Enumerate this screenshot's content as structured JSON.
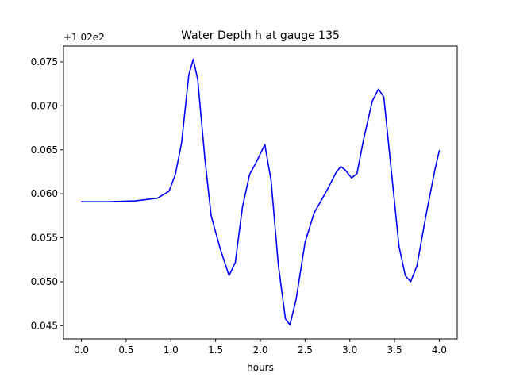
{
  "chart_data": {
    "type": "line",
    "title": "Water Depth h at gauge 135",
    "xlabel": "hours",
    "ylabel": "",
    "offset_text": "+1.02e2",
    "xlim": [
      -0.2,
      4.2
    ],
    "ylim": [
      0.0435,
      0.0768
    ],
    "xticks": [
      0.0,
      0.5,
      1.0,
      1.5,
      2.0,
      2.5,
      3.0,
      3.5,
      4.0
    ],
    "xtick_labels": [
      "0.0",
      "0.5",
      "1.0",
      "1.5",
      "2.0",
      "2.5",
      "3.0",
      "3.5",
      "4.0"
    ],
    "yticks": [
      0.045,
      0.05,
      0.055,
      0.06,
      0.065,
      0.07,
      0.075
    ],
    "ytick_labels": [
      "0.045",
      "0.050",
      "0.055",
      "0.060",
      "0.065",
      "0.070",
      "0.075"
    ],
    "grid": false,
    "series": [
      {
        "color": "#0000ff",
        "x": [
          0.0,
          0.3,
          0.6,
          0.85,
          0.98,
          1.05,
          1.12,
          1.2,
          1.25,
          1.3,
          1.38,
          1.45,
          1.55,
          1.65,
          1.72,
          1.8,
          1.88,
          1.95,
          2.05,
          2.12,
          2.2,
          2.28,
          2.33,
          2.4,
          2.5,
          2.6,
          2.75,
          2.85,
          2.9,
          2.95,
          3.02,
          3.08,
          3.15,
          3.25,
          3.32,
          3.38,
          3.45,
          3.55,
          3.62,
          3.68,
          3.75,
          3.85,
          3.95,
          4.0
        ],
        "y": [
          0.0591,
          0.0591,
          0.0592,
          0.0595,
          0.0603,
          0.0622,
          0.0658,
          0.0735,
          0.0753,
          0.073,
          0.064,
          0.0575,
          0.0538,
          0.0507,
          0.0522,
          0.0585,
          0.0622,
          0.0635,
          0.0656,
          0.0615,
          0.052,
          0.0458,
          0.0451,
          0.048,
          0.0545,
          0.0578,
          0.0605,
          0.0625,
          0.0631,
          0.0627,
          0.0618,
          0.0623,
          0.066,
          0.0705,
          0.0719,
          0.071,
          0.064,
          0.054,
          0.0507,
          0.05,
          0.0518,
          0.0575,
          0.0627,
          0.0649
        ]
      }
    ]
  }
}
